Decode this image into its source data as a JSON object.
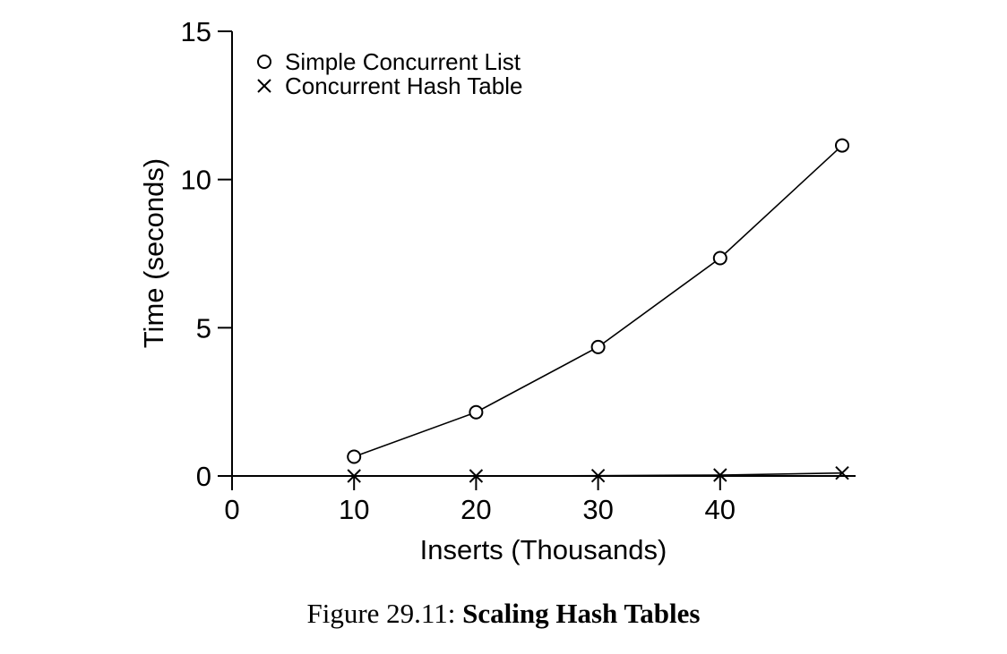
{
  "chart_data": {
    "type": "line",
    "xlabel": "Inserts (Thousands)",
    "ylabel": "Time (seconds)",
    "xlim": [
      0,
      50
    ],
    "ylim": [
      0,
      15
    ],
    "xticks": [
      0,
      10,
      20,
      30,
      40
    ],
    "yticks": [
      0,
      5,
      10,
      15
    ],
    "grid": false,
    "legend_position": "top-left",
    "series": [
      {
        "name": "Simple Concurrent List",
        "marker": "circle",
        "x": [
          10,
          20,
          30,
          40,
          50
        ],
        "y": [
          0.65,
          2.15,
          4.35,
          7.35,
          11.15
        ]
      },
      {
        "name": "Concurrent Hash Table",
        "marker": "x",
        "x": [
          10,
          20,
          30,
          40,
          50
        ],
        "y": [
          0.0,
          0.0,
          0.01,
          0.03,
          0.1
        ]
      }
    ]
  },
  "caption": {
    "prefix": "Figure 29.11: ",
    "title": "Scaling Hash Tables"
  }
}
